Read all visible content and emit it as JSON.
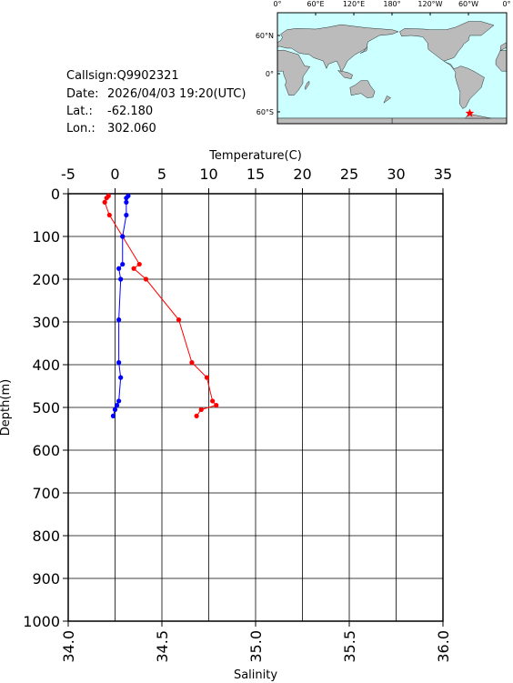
{
  "info": {
    "callsign": "Callsign:Q9902321",
    "date_label": "Date:",
    "date": "2026/04/03 19:20(UTC)",
    "lat_label": "Lat.:",
    "lat": {
      "value": -62.18,
      "label": "-62.180"
    },
    "lon_label": "Lon.:",
    "lon": {
      "value": 302.06,
      "label": "302.060"
    }
  },
  "map": {
    "lon_ticks": [
      {
        "value": 0,
        "label": "0°"
      },
      {
        "value": 60,
        "label": "60°E"
      },
      {
        "value": 120,
        "label": "120°E"
      },
      {
        "value": 180,
        "label": "180°"
      },
      {
        "value": 240,
        "label": "120°W"
      },
      {
        "value": 300,
        "label": "60°W"
      },
      {
        "value": 360,
        "label": "0°"
      }
    ],
    "lat_ticks": [
      {
        "value": 60,
        "label": "60°N"
      },
      {
        "value": 0,
        "label": "0°"
      },
      {
        "value": -60,
        "label": "60°S"
      }
    ]
  },
  "chart_data": {
    "type": "line",
    "x_top_label": "Temperature(C)",
    "xlabel": "Salinity",
    "ylabel": "Depth(m)",
    "ylim": [
      0,
      1000
    ],
    "y_inverted": true,
    "yticks": [
      0,
      100,
      200,
      300,
      400,
      500,
      600,
      700,
      800,
      900,
      1000
    ],
    "x_top_lim": [
      -5,
      35
    ],
    "x_top_ticks": [
      -5,
      0,
      5,
      10,
      15,
      20,
      25,
      30,
      35
    ],
    "xlim": [
      34,
      36
    ],
    "xticks": [
      {
        "value": 34,
        "label": "34.0"
      },
      34.5,
      {
        "value": 35,
        "label": "35.0"
      },
      35.5,
      {
        "value": 36,
        "label": "36.0"
      }
    ],
    "grid": true,
    "depth": [
      5,
      10,
      20,
      50,
      100,
      165,
      175,
      200,
      295,
      395,
      430,
      485,
      495,
      505,
      520
    ],
    "series": [
      {
        "color": "#ff0000",
        "axis": "x_top",
        "values": [
          -0.7,
          -0.9,
          -1.1,
          -0.6,
          0.8,
          2.6,
          2.0,
          3.3,
          6.8,
          8.2,
          9.8,
          10.4,
          10.8,
          9.2,
          8.7
        ]
      },
      {
        "color": "#0000ff",
        "axis": "x",
        "values": [
          34.32,
          34.31,
          34.31,
          34.31,
          34.29,
          34.29,
          34.27,
          34.28,
          34.27,
          34.27,
          34.28,
          34.27,
          34.26,
          34.25,
          34.24
        ]
      }
    ]
  }
}
